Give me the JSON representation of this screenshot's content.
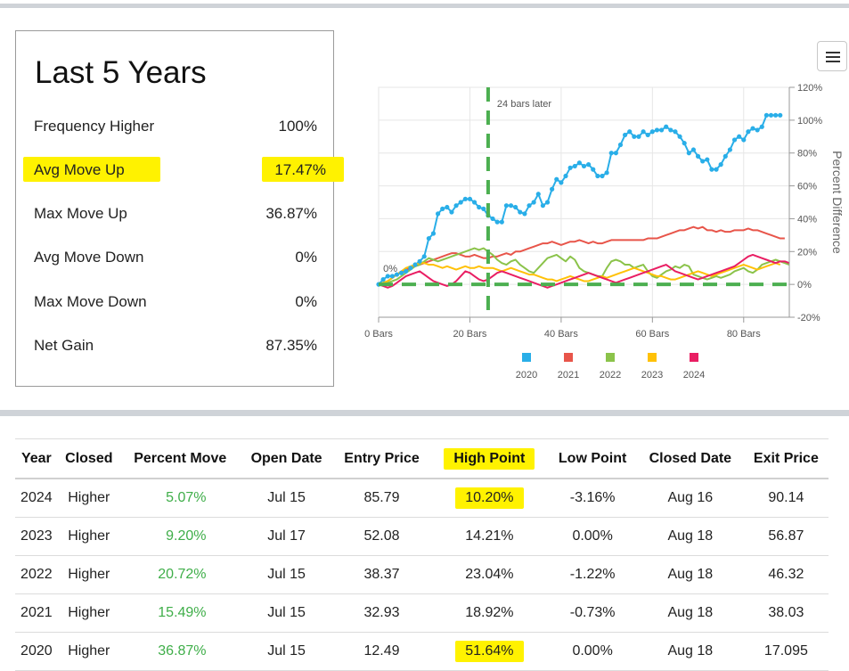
{
  "summary": {
    "title": "Last 5 Years",
    "rows": [
      {
        "label": "Frequency Higher",
        "value": "100%"
      },
      {
        "label": "Avg Move Up",
        "value": "17.47%",
        "highlighted": true
      },
      {
        "label": "Max Move Up",
        "value": "36.87%"
      },
      {
        "label": "Avg Move Down",
        "value": "0%"
      },
      {
        "label": "Max Move Down",
        "value": "0%"
      },
      {
        "label": "Net Gain",
        "value": "87.35%"
      }
    ]
  },
  "menu_icon": "hamburger-menu-icon",
  "colors": {
    "highlight": "#fff200",
    "positive": "#3fae49",
    "reference_line": "#4caf50"
  },
  "chart_data": {
    "type": "line",
    "x_label": "",
    "y_label": "Percent Difference",
    "x_range": [
      0,
      90
    ],
    "y_range": [
      -20,
      120
    ],
    "x_ticks": [
      0,
      20,
      40,
      60,
      80
    ],
    "x_tick_labels": [
      "0 Bars",
      "20 Bars",
      "40 Bars",
      "60 Bars",
      "80 Bars"
    ],
    "y_ticks": [
      -20,
      0,
      20,
      40,
      60,
      80,
      100,
      120
    ],
    "y_tick_labels": [
      "-20%",
      "0%",
      "20%",
      "40%",
      "60%",
      "80%",
      "100%",
      "120%"
    ],
    "zero_label": "0%",
    "vertical_marker": {
      "x": 24,
      "label": "24 bars later"
    },
    "horizontal_marker": {
      "y": 0
    },
    "legend_position": "bottom",
    "series": [
      {
        "name": "2020",
        "color": "#29aee8",
        "markers": true,
        "values": [
          0,
          3,
          5,
          5,
          6,
          7,
          8,
          10,
          12,
          14,
          17,
          28,
          31,
          43,
          46,
          47,
          44,
          48,
          50,
          52,
          52,
          50,
          47,
          46,
          42,
          40,
          38,
          38,
          48,
          48,
          47,
          44,
          43,
          48,
          50,
          55,
          48,
          50,
          58,
          64,
          62,
          66,
          71,
          72,
          74,
          72,
          73,
          70,
          66,
          66,
          68,
          80,
          80,
          85,
          91,
          93,
          90,
          90,
          93,
          91,
          93,
          94,
          94,
          96,
          94,
          93,
          90,
          86,
          80,
          82,
          78,
          75,
          76,
          70,
          70,
          73,
          78,
          82,
          88,
          90,
          88,
          93,
          95,
          94,
          96,
          103,
          103,
          103,
          103
        ]
      },
      {
        "name": "2021",
        "color": "#e8554a",
        "markers": false,
        "values": [
          0,
          1,
          2,
          4,
          6,
          8,
          9,
          10,
          11,
          12,
          13,
          14,
          15,
          16,
          17,
          18,
          19,
          19,
          18,
          17,
          17,
          18,
          17,
          16,
          16,
          17,
          17,
          18,
          19,
          18,
          20,
          20,
          21,
          22,
          23,
          24,
          25,
          25,
          26,
          25,
          24,
          25,
          26,
          26,
          27,
          26,
          25,
          26,
          25,
          25,
          26,
          27,
          27,
          27,
          27,
          27,
          27,
          27,
          27,
          28,
          28,
          28,
          29,
          30,
          31,
          32,
          33,
          33,
          34,
          35,
          34,
          35,
          33,
          33,
          32,
          33,
          32,
          32,
          33,
          33,
          33,
          34,
          33,
          33,
          32,
          31,
          30,
          29,
          28,
          28
        ]
      },
      {
        "name": "2022",
        "color": "#8bc34a",
        "markers": false,
        "values": [
          0,
          0,
          1,
          2,
          3,
          5,
          7,
          9,
          11,
          12,
          14,
          16,
          15,
          14,
          15,
          16,
          17,
          18,
          19,
          20,
          21,
          22,
          21,
          22,
          20,
          18,
          15,
          13,
          12,
          14,
          15,
          12,
          10,
          8,
          7,
          10,
          13,
          16,
          17,
          18,
          16,
          14,
          17,
          15,
          10,
          8,
          7,
          6,
          5,
          5,
          10,
          14,
          15,
          14,
          12,
          12,
          10,
          11,
          12,
          8,
          5,
          4,
          6,
          8,
          9,
          11,
          10,
          12,
          11,
          6,
          5,
          4,
          3,
          4,
          5,
          4,
          5,
          6,
          8,
          9,
          10,
          8,
          7,
          9,
          12,
          13,
          14,
          15,
          14,
          13,
          12
        ]
      },
      {
        "name": "2023",
        "color": "#ffc107",
        "markers": false,
        "values": [
          0,
          1,
          2,
          4,
          6,
          8,
          10,
          11,
          12,
          13,
          13,
          12,
          12,
          11,
          10,
          11,
          10,
          9,
          10,
          11,
          10,
          10,
          11,
          10,
          10,
          10,
          9,
          8,
          9,
          10,
          9,
          8,
          7,
          6,
          6,
          5,
          4,
          3,
          3,
          2,
          3,
          4,
          5,
          4,
          3,
          2,
          2,
          3,
          4,
          5,
          4,
          5,
          6,
          7,
          8,
          9,
          10,
          9,
          8,
          7,
          6,
          5,
          5,
          4,
          3,
          3,
          4,
          5,
          6,
          7,
          8,
          7,
          6,
          5,
          6,
          7,
          8,
          9,
          10,
          11,
          12,
          11,
          10,
          9,
          10,
          11,
          12,
          13,
          12
        ]
      },
      {
        "name": "2024",
        "color": "#e91e63",
        "markers": false,
        "values": [
          0,
          -1,
          -2,
          -1,
          1,
          3,
          5,
          6,
          7,
          8,
          6,
          4,
          2,
          1,
          0,
          -1,
          0,
          2,
          5,
          8,
          7,
          5,
          3,
          2,
          3,
          5,
          7,
          8,
          7,
          6,
          5,
          4,
          3,
          2,
          1,
          0,
          -1,
          -2,
          -1,
          0,
          1,
          2,
          3,
          4,
          5,
          6,
          7,
          6,
          5,
          4,
          3,
          2,
          1,
          2,
          3,
          4,
          5,
          6,
          7,
          8,
          9,
          10,
          11,
          12,
          10,
          8,
          7,
          6,
          5,
          4,
          3,
          4,
          5,
          6,
          7,
          8,
          9,
          10,
          11,
          13,
          15,
          17,
          18,
          17,
          16,
          15,
          14,
          13,
          14,
          14,
          13
        ]
      }
    ]
  },
  "table": {
    "headers": [
      "Year",
      "Closed",
      "Percent Move",
      "Open Date",
      "Entry Price",
      "High Point",
      "Low Point",
      "Closed Date",
      "Exit Price"
    ],
    "rows": [
      {
        "year": "2024",
        "closed": "Higher",
        "percent_move": "5.07%",
        "open_date": "Jul 15",
        "entry_price": "85.79",
        "high_point": "10.20%",
        "low_point": "-3.16%",
        "closed_date": "Aug 16",
        "exit_price": "90.14",
        "high_highlighted": true
      },
      {
        "year": "2023",
        "closed": "Higher",
        "percent_move": "9.20%",
        "open_date": "Jul 17",
        "entry_price": "52.08",
        "high_point": "14.21%",
        "low_point": "0.00%",
        "closed_date": "Aug 18",
        "exit_price": "56.87",
        "high_highlighted": false
      },
      {
        "year": "2022",
        "closed": "Higher",
        "percent_move": "20.72%",
        "open_date": "Jul 15",
        "entry_price": "38.37",
        "high_point": "23.04%",
        "low_point": "-1.22%",
        "closed_date": "Aug 18",
        "exit_price": "46.32",
        "high_highlighted": false
      },
      {
        "year": "2021",
        "closed": "Higher",
        "percent_move": "15.49%",
        "open_date": "Jul 15",
        "entry_price": "32.93",
        "high_point": "18.92%",
        "low_point": "-0.73%",
        "closed_date": "Aug 18",
        "exit_price": "38.03",
        "high_highlighted": false
      },
      {
        "year": "2020",
        "closed": "Higher",
        "percent_move": "36.87%",
        "open_date": "Jul 15",
        "entry_price": "12.49",
        "high_point": "51.64%",
        "low_point": "0.00%",
        "closed_date": "Aug 18",
        "exit_price": "17.095",
        "high_highlighted": true
      }
    ]
  }
}
